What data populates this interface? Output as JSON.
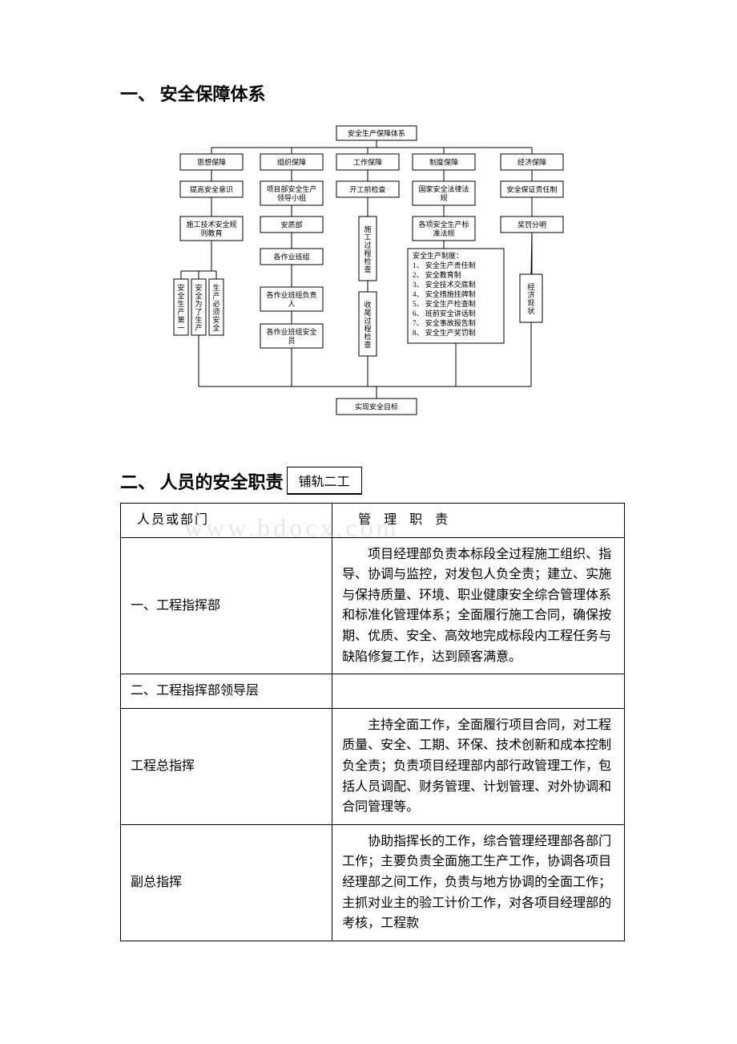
{
  "watermark": "www.bdocx.com",
  "heading1": "一、 安全保障体系",
  "flowchart": {
    "type": "flowchart",
    "background_color": "#ffffff",
    "box_border_color": "#000000",
    "line_color": "#000000",
    "box_fill": "#ffffff",
    "font_size": 9,
    "nodes": {
      "root": "安全生产保障体系",
      "r1c1": "思想保障",
      "r1c2": "组织保障",
      "r1c3": "工作保障",
      "r1c4": "制度保障",
      "r1c5": "经济保障",
      "r2c1": "提高安全意识",
      "r2c2": "项目部安全生产领导小组",
      "r2c3": "开工前检查",
      "r2c4": "国家安全法律法规",
      "r2c5": "安全保证责任制",
      "r3c1": "施工技术安全规则教育",
      "r3c2": "安质部",
      "r3c3": "施工过程检查",
      "r3c4": "各项安全生产标准法规",
      "r3c5": "奖罚分明",
      "r4c2": "各作业班组",
      "r4c4_title": "安全生产制度：",
      "r4c4_items": [
        "1、 安全生产责任制",
        "2、 安全教育制",
        "3、 安全技术交底制",
        "4、 安全措施挂牌制",
        "5、 安全生产检查制",
        "6、 班前安全讲话制",
        "7、 安全事故报告制",
        "8、 安全生产奖罚制"
      ],
      "r4c5": "经济现状",
      "left_v1": "安全生产第一",
      "left_v2": "安全为了生产",
      "left_v3": "生产必须安全",
      "r5c2a": "各作业班组负责人",
      "r5c2b": "各作业班组安全员",
      "r5c3": "收尾过程检查",
      "goal": "实现安全目标"
    }
  },
  "heading2": "二、 人员的安全职责",
  "heading2_box": "铺轨二工",
  "table": {
    "header": {
      "col1": "人员或部门",
      "col2": "管 理 职 责"
    },
    "rows": [
      {
        "col1": "一、工程指挥部",
        "col2": "　　项目经理部负责本标段全过程施工组织、指导、协调与监控，对发包人负全责；建立、实施与保持质量、环境、职业健康安全综合管理体系和标准化管理体系；全面履行施工合同，确保按期、优质、安全、高效地完成标段内工程任务与缺陷修复工作，达到顾客满意。"
      },
      {
        "col1": "二、工程指挥部领导层",
        "col2": ""
      },
      {
        "col1": "工程总指挥",
        "col2": "　　主持全面工作，全面履行项目合同，对工程质量、安全、工期、环保、技术创新和成本控制负全责；负责项目经理部内部行政管理工作，包括人员调配、财务管理、计划管理、对外协调和合同管理等。"
      },
      {
        "col1": "副总指挥",
        "col2": "　　协助指挥长的工作，综合管理经理部各部门工作；主要负责全面施工生产工作，协调各项目经理部之间工作，负责与地方协调的全面工作；主抓对业主的验工计价工作，对各项目经理部的考核，工程款"
      }
    ]
  }
}
